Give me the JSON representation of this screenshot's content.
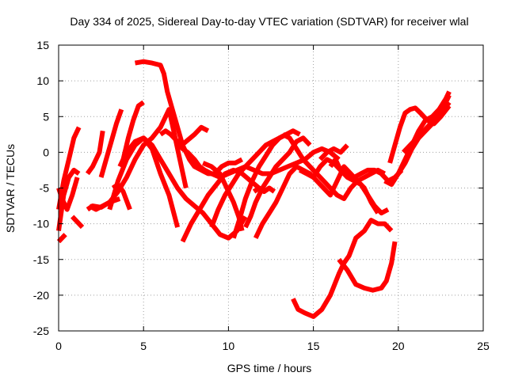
{
  "chart_data": {
    "type": "line",
    "title": "Day 334 of 2025, Sidereal Day-to-day VTEC variation (SDTVAR) for receiver wlal",
    "xlabel": "GPS time / hours",
    "ylabel": "SDTVAR / TECUs",
    "xlim": [
      0,
      25
    ],
    "ylim": [
      -25,
      15
    ],
    "x_ticks": [
      0,
      5,
      10,
      15,
      20,
      25
    ],
    "y_ticks": [
      -25,
      -20,
      -15,
      -10,
      -5,
      0,
      5,
      10,
      15
    ],
    "x_tick_labels": [
      "0",
      "5",
      "10",
      "15",
      "20",
      "25"
    ],
    "y_tick_labels": [
      "-25",
      "-20",
      "-15",
      "-10",
      "-5",
      "0",
      "5",
      "10",
      "15"
    ],
    "grid": true,
    "legend": "none",
    "color": "#ff0000",
    "series": [
      {
        "x": [
          0.0,
          0.3,
          0.6,
          0.9,
          1.2
        ],
        "y": [
          -8,
          -4,
          -1,
          2,
          3.5
        ]
      },
      {
        "x": [
          0.0,
          0.3,
          0.6,
          0.9,
          1.2
        ],
        "y": [
          -11,
          -6,
          -3.5,
          -2.5,
          -3
        ]
      },
      {
        "x": [
          0.0,
          0.2,
          0.5,
          0.8,
          1.1
        ],
        "y": [
          -5,
          -6.5,
          -8,
          -6,
          -3.5
        ]
      },
      {
        "x": [
          0.0,
          0.4
        ],
        "y": [
          -12.5,
          -11.5
        ]
      },
      {
        "x": [
          0.8,
          1.4
        ],
        "y": [
          -9,
          -10.5
        ]
      },
      {
        "x": [
          1.7,
          2.0,
          2.4,
          2.6
        ],
        "y": [
          -3,
          -2,
          0,
          3
        ]
      },
      {
        "x": [
          1.7,
          2.0,
          2.5,
          3.0,
          3.6
        ],
        "y": [
          -8,
          -7.5,
          -7.7,
          -7,
          -6.5
        ]
      },
      {
        "x": [
          1.8,
          2.2,
          2.6,
          3.0,
          3.5,
          4.0,
          4.5,
          5.0,
          5.5,
          6.0,
          6.5,
          7.0,
          7.5
        ],
        "y": [
          -7.5,
          -8,
          -7.5,
          -7,
          -5.5,
          -3.5,
          -1,
          1,
          2,
          3.5,
          6,
          0.5,
          -5
        ]
      },
      {
        "x": [
          2.5,
          2.8,
          3.1,
          3.4,
          3.7
        ],
        "y": [
          -3.5,
          -1,
          1.5,
          4,
          6
        ]
      },
      {
        "x": [
          3.2,
          3.5,
          3.8,
          4.2
        ],
        "y": [
          -5,
          -4.5,
          -5.5,
          -8
        ]
      },
      {
        "x": [
          3.8,
          4.1,
          4.4,
          4.7,
          5.0
        ],
        "y": [
          -1,
          2,
          4.5,
          6.5,
          7
        ]
      },
      {
        "x": [
          3.6,
          4.0,
          4.5,
          5.0,
          5.5,
          6.0,
          6.5,
          7.0
        ],
        "y": [
          -2,
          0,
          1.5,
          2,
          0.5,
          -3,
          -6,
          -10.5
        ]
      },
      {
        "x": [
          3.0,
          3.5,
          4.0,
          4.5,
          5.0,
          5.5,
          6.0,
          6.5,
          7.0,
          7.5,
          8.0,
          8.5,
          9.0,
          9.5,
          10.0,
          10.5,
          11.0
        ],
        "y": [
          -8,
          -4,
          -1,
          1,
          2,
          1,
          -1,
          -3,
          -5,
          -6.5,
          -7.5,
          -8.5,
          -10,
          -11.5,
          -12,
          -11,
          -9
        ]
      },
      {
        "x": [
          4.5,
          5.0,
          5.5,
          6.0,
          6.2,
          6.4,
          6.7,
          7.0,
          7.3,
          7.7,
          8.0,
          8.4,
          8.8,
          9.2,
          9.6,
          10.0,
          10.4,
          10.8
        ],
        "y": [
          12.5,
          12.7,
          12.5,
          12.2,
          11,
          8.5,
          6,
          3.5,
          1,
          -1,
          -2,
          -2.5,
          -3,
          -3,
          -2,
          -1.5,
          -1.5,
          -1
        ]
      },
      {
        "x": [
          6.0,
          6.3,
          6.6,
          7.0,
          7.3,
          7.6,
          8.0,
          8.3,
          8.6,
          9.0,
          9.5,
          10.0,
          10.5,
          11.0,
          11.5,
          12.0,
          12.5,
          13.0,
          13.5,
          14.0,
          14.5,
          15.0,
          15.5,
          16.0,
          16.5
        ],
        "y": [
          2.5,
          3,
          2.5,
          1.5,
          0.5,
          0,
          -1,
          -2,
          -2.5,
          -3,
          -3.5,
          -3,
          -2.5,
          -2,
          -2.5,
          -3,
          -3,
          -2.5,
          -2,
          -1.5,
          -1,
          0,
          0.5,
          0,
          -1
        ]
      },
      {
        "x": [
          7.0,
          7.5,
          8.0,
          8.4,
          8.8
        ],
        "y": [
          0.5,
          1.5,
          2.5,
          3.5,
          3
        ]
      },
      {
        "x": [
          7.3,
          7.8,
          8.3,
          8.8,
          9.3,
          9.8,
          10.3,
          10.8,
          11.3,
          11.8
        ],
        "y": [
          -12.5,
          -10,
          -8,
          -6,
          -4.5,
          -3,
          -2.5,
          -3,
          -4,
          -5
        ]
      },
      {
        "x": [
          8.5,
          9.0,
          9.5,
          10.0,
          10.3,
          10.6,
          10.8
        ],
        "y": [
          -1.5,
          -2,
          -3,
          -5.5,
          -7,
          -9,
          -11
        ]
      },
      {
        "x": [
          9.0,
          9.4,
          9.8,
          10.2,
          10.6,
          11.0,
          11.4,
          11.8,
          12.2,
          12.6,
          13.0,
          13.4
        ],
        "y": [
          -10.5,
          -8,
          -6,
          -4.5,
          -3,
          -2,
          -1,
          0,
          1,
          1.5,
          2,
          2.5
        ]
      },
      {
        "x": [
          10.3,
          10.7,
          11.0,
          11.4,
          11.8,
          12.2,
          12.6,
          13.0,
          13.4,
          13.8,
          14.2
        ],
        "y": [
          -12,
          -9,
          -6.5,
          -4,
          -2,
          -0.5,
          1,
          2,
          2.5,
          3,
          2.5
        ]
      },
      {
        "x": [
          11.5,
          11.8,
          12.1,
          12.4,
          12.7
        ],
        "y": [
          -5.5,
          -5,
          -5.5,
          -5,
          -5.5
        ]
      },
      {
        "x": [
          11.0,
          11.3,
          11.6,
          12.0,
          12.4,
          12.8,
          13.2,
          13.6,
          14.0,
          14.4,
          14.8
        ],
        "y": [
          -10.5,
          -9,
          -7,
          -5,
          -3.5,
          -2,
          -1,
          0,
          1.5,
          2,
          1
        ]
      },
      {
        "x": [
          11.6,
          12.0,
          12.4,
          12.8,
          13.2,
          13.6,
          14.0,
          14.4,
          14.8,
          15.2,
          15.6,
          16.0,
          16.4,
          16.8,
          17.2,
          17.6,
          18.0,
          18.4,
          18.8
        ],
        "y": [
          -12,
          -10,
          -8.5,
          -7,
          -5,
          -3,
          -2,
          -2.5,
          -3,
          -4,
          -5,
          -6,
          -4,
          -2,
          -3,
          -4,
          -5,
          -7,
          -8.5
        ]
      },
      {
        "x": [
          13.2,
          13.6,
          14.0,
          14.4,
          14.8,
          15.2,
          15.6,
          16.0,
          16.4,
          16.8,
          17.2,
          17.6,
          18.0,
          18.4,
          18.8,
          19.2
        ],
        "y": [
          2.5,
          2,
          0.5,
          -1,
          -2,
          -3,
          -4,
          -5,
          -6,
          -6.5,
          -5,
          -4,
          -3.5,
          -3,
          -2.5,
          -3
        ]
      },
      {
        "x": [
          14.2,
          14.6,
          15.0,
          15.4,
          15.8,
          16.2,
          16.6,
          17.0,
          17.4,
          17.8,
          18.2,
          18.6,
          19.0,
          19.4,
          19.8,
          20.2
        ],
        "y": [
          -2.5,
          -3,
          -3.5,
          -2,
          -1,
          -1.5,
          -2.5,
          -3,
          -3.5,
          -3,
          -2.5,
          -2.5,
          -3,
          -4,
          -3.5,
          -2.5
        ]
      },
      {
        "x": [
          15.4,
          15.8,
          16.2,
          16.6,
          17.0
        ],
        "y": [
          -1,
          0,
          0.5,
          0,
          1
        ]
      },
      {
        "x": [
          16.0,
          16.3,
          16.6,
          17.0,
          17.4,
          17.8,
          18.2,
          18.6,
          19.0,
          19.4
        ],
        "y": [
          -2,
          -1,
          -2.5,
          -3.5,
          -4,
          -4.5,
          -6,
          -7.5,
          -8.5,
          -8
        ]
      },
      {
        "x": [
          13.8,
          14.1,
          14.5,
          15.0,
          15.5,
          16.0,
          16.5,
          16.8,
          17.1,
          17.5,
          18.0,
          18.4,
          18.8,
          19.2,
          19.6
        ],
        "y": [
          -20.5,
          -22,
          -22.5,
          -23,
          -22,
          -20,
          -17,
          -15.5,
          -14.5,
          -12,
          -11,
          -9.5,
          -10,
          -10,
          -11
        ]
      },
      {
        "x": [
          16.5,
          17.0,
          17.5,
          18.0,
          18.5,
          19.0,
          19.3,
          19.6,
          19.8
        ],
        "y": [
          -15,
          -16.5,
          -18.5,
          -19,
          -19.3,
          -19,
          -18,
          -15.5,
          -12.5
        ]
      },
      {
        "x": [
          19.2,
          19.6,
          20.0,
          20.4,
          20.8,
          21.2,
          21.6,
          22.0,
          22.4,
          22.8,
          23.0
        ],
        "y": [
          -4,
          -4.5,
          -3,
          -1,
          1,
          3,
          4.5,
          5,
          6,
          7.5,
          8.5
        ]
      },
      {
        "x": [
          19.5,
          19.8,
          20.1,
          20.4,
          20.7,
          21.0,
          21.3,
          21.7,
          22.1,
          22.5,
          23.0
        ],
        "y": [
          -1.5,
          1,
          3.5,
          5.5,
          6,
          6.2,
          5.5,
          4.5,
          4,
          5,
          6.5
        ]
      },
      {
        "x": [
          20.0,
          20.4,
          20.8,
          21.2,
          21.6,
          22.0,
          22.4,
          22.8,
          23.0
        ],
        "y": [
          -3,
          -1.5,
          0.5,
          2,
          3,
          4,
          5.5,
          7,
          8
        ]
      },
      {
        "x": [
          20.3,
          20.7,
          21.1,
          21.5,
          21.9,
          22.3,
          22.7,
          23.0
        ],
        "y": [
          0,
          1,
          2,
          3,
          4,
          5,
          6,
          7
        ]
      }
    ]
  }
}
